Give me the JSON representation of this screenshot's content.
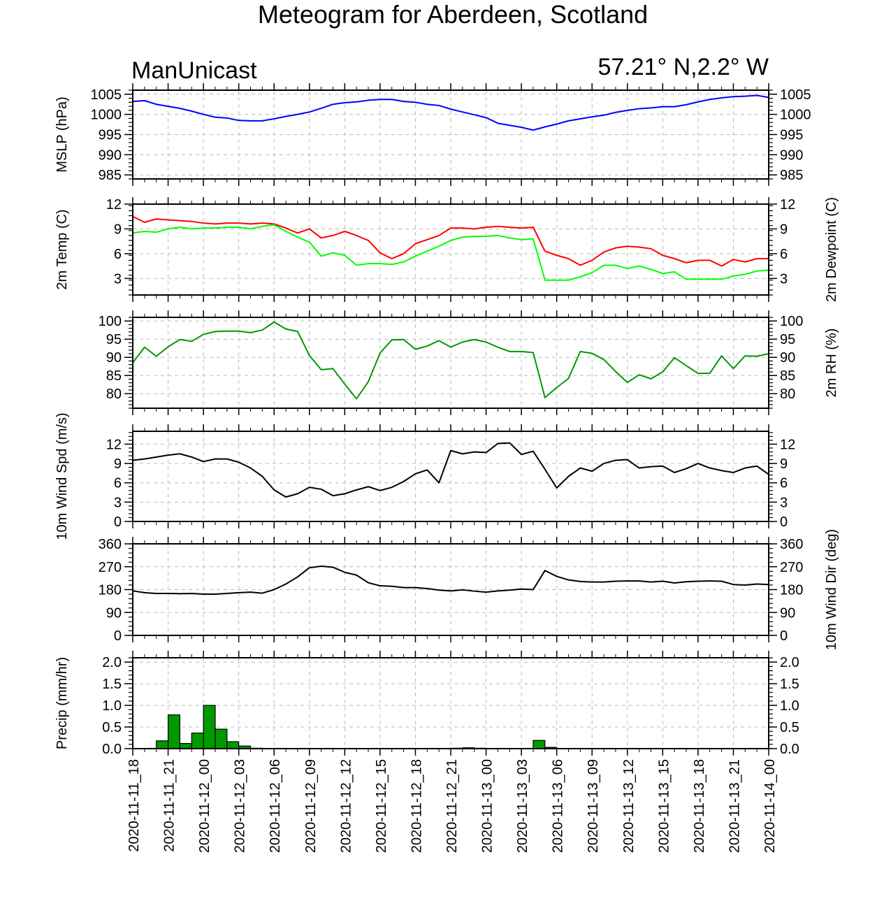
{
  "title": "Meteogram for Aberdeen, Scotland",
  "model_label": "ManUnicast",
  "location_label": "57.21° N,2.2° W",
  "colors": {
    "pressure": "#0000ff",
    "temperature": "#ff0000",
    "dewpoint": "#00ff00",
    "rh": "#009900",
    "wind": "#000000",
    "precip_fill": "#009900"
  },
  "chart_data": [
    {
      "type": "line",
      "title": "",
      "ylabel": "MSLP (hPa)",
      "ylabel_right": "",
      "ylim": [
        984,
        1006
      ],
      "yticks": [
        985,
        990,
        995,
        1000,
        1005
      ],
      "grid": true,
      "series": [
        {
          "values": [
            1003.2,
            1003.4,
            1002.5,
            1002.0,
            1001.5,
            1000.8,
            1000.0,
            999.3,
            999.1,
            998.5,
            998.4,
            998.4,
            998.9,
            999.5,
            1000.0,
            1000.6,
            1001.5,
            1002.5,
            1002.9,
            1003.1,
            1003.5,
            1003.7,
            1003.7,
            1003.2,
            1003.0,
            1002.5,
            1002.2,
            1001.3,
            1000.6,
            999.9,
            999.2,
            997.8,
            997.3,
            996.8,
            996.1,
            996.9,
            997.6,
            998.4,
            998.9,
            999.4,
            999.8,
            1000.5,
            1001.0,
            1001.4,
            1001.6,
            1001.9,
            1001.9,
            1002.4,
            1003.1,
            1003.7,
            1004.1,
            1004.4,
            1004.5,
            1004.7,
            1004.2
          ]
        }
      ]
    },
    {
      "type": "line",
      "title": "",
      "ylabel": "2m Temp (C)",
      "ylabel_right": "2m Dewpoint (C)",
      "ylim": [
        1,
        12
      ],
      "yticks": [
        3,
        6,
        9,
        12
      ],
      "grid": true,
      "series": [
        {
          "values": [
            10.5,
            9.8,
            10.2,
            10.1,
            10.0,
            9.9,
            9.7,
            9.6,
            9.7,
            9.7,
            9.6,
            9.7,
            9.6,
            9.1,
            8.5,
            9.0,
            7.9,
            8.2,
            8.7,
            8.2,
            7.6,
            6.1,
            5.4,
            6.0,
            7.2,
            7.7,
            8.2,
            9.1,
            9.1,
            9.0,
            9.2,
            9.3,
            9.2,
            9.1,
            9.2,
            6.3,
            5.8,
            5.4,
            4.6,
            5.2,
            6.2,
            6.7,
            6.9,
            6.8,
            6.6,
            5.8,
            5.4,
            4.9,
            5.2,
            5.2,
            4.5,
            5.3,
            5.0,
            5.4,
            5.4
          ]
        },
        {
          "values": [
            8.5,
            8.7,
            8.6,
            9.0,
            9.2,
            9.0,
            9.1,
            9.1,
            9.2,
            9.2,
            9.0,
            9.3,
            9.5,
            8.7,
            8.0,
            7.4,
            5.7,
            6.1,
            5.8,
            4.6,
            4.8,
            4.8,
            4.7,
            5.0,
            5.7,
            6.3,
            6.9,
            7.6,
            8.0,
            8.1,
            8.1,
            8.2,
            7.9,
            7.7,
            7.8,
            2.8,
            2.8,
            2.8,
            3.2,
            3.7,
            4.6,
            4.6,
            4.2,
            4.5,
            4.1,
            3.6,
            3.8,
            2.9,
            2.9,
            2.9,
            2.9,
            3.3,
            3.5,
            3.9,
            4.0
          ]
        }
      ]
    },
    {
      "type": "line",
      "title": "",
      "ylabel": "",
      "ylabel_right": "2m RH (%)",
      "ylim": [
        76,
        101
      ],
      "yticks": [
        80,
        85,
        90,
        95,
        100
      ],
      "grid": true,
      "series": [
        {
          "values": [
            88.5,
            92.8,
            90.3,
            92.9,
            94.9,
            94.4,
            96.3,
            97.1,
            97.2,
            97.2,
            96.8,
            97.5,
            99.7,
            97.8,
            97.1,
            90.5,
            86.6,
            86.9,
            82.6,
            78.6,
            83.3,
            91.2,
            94.8,
            94.9,
            92.2,
            93.1,
            94.6,
            92.8,
            94.2,
            94.9,
            94.2,
            92.8,
            91.6,
            91.6,
            91.3,
            78.9,
            81.7,
            84.2,
            91.6,
            91.1,
            89.4,
            86.1,
            83.1,
            85.2,
            84.1,
            86.0,
            89.9,
            87.7,
            85.6,
            85.6,
            90.4,
            86.9,
            90.4,
            90.3,
            91.0
          ]
        }
      ]
    },
    {
      "type": "line",
      "title": "",
      "ylabel": "10m Wind Spd (m/s)",
      "ylabel_right": "",
      "ylim": [
        0,
        14
      ],
      "yticks": [
        0,
        3,
        6,
        9,
        12
      ],
      "grid": true,
      "series": [
        {
          "values": [
            9.5,
            9.7,
            10.0,
            10.3,
            10.5,
            10.0,
            9.3,
            9.7,
            9.7,
            9.2,
            8.3,
            7.0,
            4.9,
            3.8,
            4.3,
            5.3,
            5.0,
            4.0,
            4.3,
            4.9,
            5.4,
            4.8,
            5.3,
            6.2,
            7.4,
            8.0,
            6.0,
            11.0,
            10.5,
            10.8,
            10.7,
            12.1,
            12.2,
            10.4,
            10.9,
            8.1,
            5.2,
            7.0,
            8.3,
            7.8,
            9.0,
            9.5,
            9.6,
            8.3,
            8.5,
            8.6,
            7.6,
            8.2,
            9.0,
            8.3,
            7.9,
            7.6,
            8.3,
            8.6,
            7.3
          ]
        }
      ]
    },
    {
      "type": "line",
      "title": "",
      "ylabel": "",
      "ylabel_right": "10m Wind Dir (deg)",
      "ylim": [
        0,
        360
      ],
      "yticks": [
        0,
        90,
        180,
        270,
        360
      ],
      "grid": true,
      "series": [
        {
          "values": [
            175,
            168,
            165,
            165,
            164,
            165,
            162,
            162,
            165,
            168,
            170,
            166,
            180,
            202,
            230,
            266,
            272,
            268,
            248,
            237,
            207,
            195,
            193,
            188,
            188,
            184,
            178,
            175,
            179,
            174,
            170,
            175,
            178,
            182,
            180,
            255,
            232,
            218,
            212,
            210,
            210,
            213,
            214,
            214,
            210,
            213,
            206,
            211,
            213,
            214,
            213,
            200,
            198,
            202,
            200
          ]
        }
      ]
    },
    {
      "type": "bar",
      "title": "",
      "ylabel": "Precip (mm/hr)",
      "ylabel_right": "",
      "ylim": [
        0,
        2.1
      ],
      "yticks": [
        "0.0",
        "0.5",
        "1.0",
        "1.5",
        "2.0"
      ],
      "grid": true,
      "values": [
        0,
        0,
        0.18,
        0.78,
        0.12,
        0.36,
        1.0,
        0.45,
        0.16,
        0.06,
        0.01,
        0.005,
        0,
        0,
        0,
        0,
        0,
        0,
        0,
        0,
        0,
        0,
        0,
        0,
        0,
        0,
        0,
        0.01,
        0.02,
        0.01,
        0.005,
        0,
        0,
        0,
        0.19,
        0.03,
        0,
        0,
        0,
        0,
        0,
        0,
        0,
        0,
        0,
        0,
        0,
        0,
        0,
        0,
        0,
        0,
        0,
        0
      ]
    }
  ],
  "time_axis": {
    "range_hours": [
      0,
      54
    ],
    "tick_labels": [
      "2020-11-11_18",
      "2020-11-11_21",
      "2020-11-12_00",
      "2020-11-12_03",
      "2020-11-12_06",
      "2020-11-12_09",
      "2020-11-12_12",
      "2020-11-12_15",
      "2020-11-12_18",
      "2020-11-12_21",
      "2020-11-13_00",
      "2020-11-13_03",
      "2020-11-13_06",
      "2020-11-13_09",
      "2020-11-13_12",
      "2020-11-13_15",
      "2020-11-13_18",
      "2020-11-13_21",
      "2020-11-14_00"
    ]
  }
}
